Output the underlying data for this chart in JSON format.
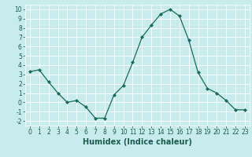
{
  "x": [
    0,
    1,
    2,
    3,
    4,
    5,
    6,
    7,
    8,
    9,
    10,
    11,
    12,
    13,
    14,
    15,
    16,
    17,
    18,
    19,
    20,
    21,
    22,
    23
  ],
  "y": [
    3.3,
    3.5,
    2.2,
    1.0,
    0.0,
    0.2,
    -0.5,
    -1.7,
    -1.7,
    0.8,
    1.8,
    4.3,
    7.0,
    8.3,
    9.5,
    10.0,
    9.3,
    6.7,
    3.2,
    1.5,
    1.0,
    0.2,
    -0.8,
    -0.8
  ],
  "line_color": "#1a6b5a",
  "marker": "D",
  "marker_size": 2,
  "bg_color": "#c8ecec",
  "grid_color": "#ffffff",
  "xlabel": "Humidex (Indice chaleur)",
  "xlim": [
    -0.5,
    23.5
  ],
  "ylim": [
    -2.5,
    10.5
  ],
  "yticks": [
    -2,
    -1,
    0,
    1,
    2,
    3,
    4,
    5,
    6,
    7,
    8,
    9,
    10
  ],
  "xticks": [
    0,
    1,
    2,
    3,
    4,
    5,
    6,
    7,
    8,
    9,
    10,
    11,
    12,
    13,
    14,
    15,
    16,
    17,
    18,
    19,
    20,
    21,
    22,
    23
  ],
  "font_color": "#1a5c50",
  "xlabel_fontsize": 7,
  "tick_fontsize": 5.5,
  "title_fontsize": 7
}
